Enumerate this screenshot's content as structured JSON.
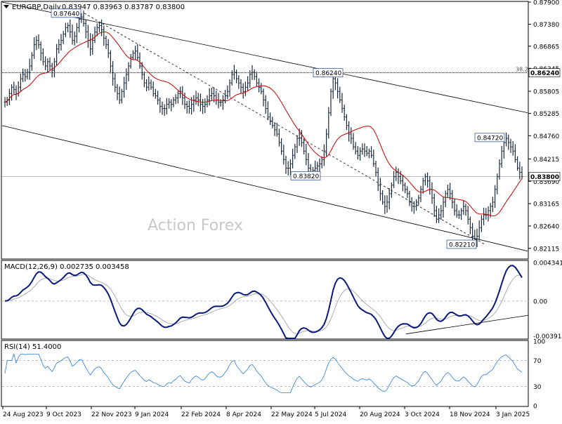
{
  "header": {
    "symbol_line": "EURGBP,Daily",
    "ohlc": "0.83947 0.83963 0.83787 0.83800"
  },
  "watermark": "Action Forex",
  "chart_data": [
    {
      "type": "bar",
      "subtype": "ohlc",
      "panel": "price",
      "ylim": [
        0.8188,
        0.879
      ],
      "y_ticks": [
        "0.87900",
        "0.87380",
        "0.86865",
        "0.86345",
        "0.85805",
        "0.85285",
        "0.84760",
        "0.84215",
        "0.83690",
        "0.83165",
        "0.82640",
        "0.82115"
      ],
      "x_ticks": [
        "24 Aug 2023",
        "9 Oct 2023",
        "22 Nov 2023",
        "9 Jan 2024",
        "22 Feb 2024",
        "8 Apr 2024",
        "22 May 2024",
        "5 Jul 2024",
        "20 Aug 2024",
        "3 Oct 2024",
        "18 Nov 2024",
        "3 Jan 2025"
      ],
      "closes": [
        0.8555,
        0.856,
        0.8575,
        0.859,
        0.8585,
        0.8575,
        0.859,
        0.861,
        0.862,
        0.8615,
        0.8625,
        0.864,
        0.8665,
        0.869,
        0.87,
        0.869,
        0.867,
        0.865,
        0.864,
        0.865,
        0.864,
        0.863,
        0.865,
        0.868,
        0.869,
        0.87,
        0.8715,
        0.873,
        0.8735,
        0.872,
        0.87,
        0.871,
        0.873,
        0.875,
        0.8755,
        0.874,
        0.872,
        0.87,
        0.868,
        0.87,
        0.872,
        0.873,
        0.8735,
        0.8725,
        0.8705,
        0.869,
        0.867,
        0.864,
        0.861,
        0.859,
        0.8575,
        0.856,
        0.858,
        0.86,
        0.862,
        0.864,
        0.866,
        0.867,
        0.8675,
        0.866,
        0.864,
        0.862,
        0.86,
        0.859,
        0.86,
        0.859,
        0.8575,
        0.857,
        0.856,
        0.8545,
        0.854,
        0.854,
        0.855,
        0.8555,
        0.855,
        0.856,
        0.8565,
        0.8575,
        0.858,
        0.8565,
        0.855,
        0.8545,
        0.854,
        0.855,
        0.856,
        0.8565,
        0.856,
        0.855,
        0.8545,
        0.855,
        0.856,
        0.857,
        0.8575,
        0.857,
        0.856,
        0.8555,
        0.8555,
        0.856,
        0.857,
        0.858,
        0.86,
        0.862,
        0.8625,
        0.861,
        0.86,
        0.859,
        0.858,
        0.859,
        0.86,
        0.862,
        0.8625,
        0.8615,
        0.86,
        0.859,
        0.858,
        0.856,
        0.854,
        0.852,
        0.851,
        0.85,
        0.849,
        0.848,
        0.846,
        0.844,
        0.842,
        0.84,
        0.84,
        0.841,
        0.843,
        0.845,
        0.847,
        0.848,
        0.846,
        0.844,
        0.842,
        0.84,
        0.839,
        0.8395,
        0.84,
        0.8405,
        0.841,
        0.842,
        0.844,
        0.848,
        0.853,
        0.858,
        0.861,
        0.86,
        0.858,
        0.856,
        0.854,
        0.852,
        0.85,
        0.848,
        0.847,
        0.845,
        0.844,
        0.843,
        0.844,
        0.8445,
        0.844,
        0.8435,
        0.844,
        0.843,
        0.841,
        0.839,
        0.836,
        0.834,
        0.832,
        0.831,
        0.832,
        0.834,
        0.836,
        0.838,
        0.839,
        0.838,
        0.837,
        0.836,
        0.835,
        0.834,
        0.832,
        0.831,
        0.831,
        0.832,
        0.833,
        0.835,
        0.837,
        0.838,
        0.837,
        0.835,
        0.833,
        0.83,
        0.828,
        0.829,
        0.83,
        0.832,
        0.834,
        0.835,
        0.834,
        0.832,
        0.83,
        0.829,
        0.829,
        0.83,
        0.831,
        0.83,
        0.828,
        0.826,
        0.824,
        0.823,
        0.824,
        0.826,
        0.828,
        0.829,
        0.829,
        0.83,
        0.831,
        0.832,
        0.835,
        0.838,
        0.841,
        0.844,
        0.846,
        0.847,
        0.846,
        0.845,
        0.844,
        0.842,
        0.84,
        0.839,
        0.838
      ],
      "ma": {
        "color": "#cc0000",
        "start": 0.856,
        "end": 0.8355
      },
      "horizontal_levels": [
        {
          "value": 0.8624,
          "label": "0.86240",
          "note": "38.2",
          "style": "dotted"
        },
        {
          "value": 0.838,
          "label": "0.83800",
          "style": "thin"
        }
      ],
      "price_labels": [
        {
          "text": "0.87640",
          "value": 0.8764
        },
        {
          "text": "0.86240",
          "value": 0.8624
        },
        {
          "text": "0.83820",
          "value": 0.8382
        },
        {
          "text": "0.84720",
          "value": 0.8472
        },
        {
          "text": "0.82210",
          "value": 0.8221
        }
      ],
      "channel_lines": [
        {
          "name": "upper",
          "from": 0.879,
          "to": 0.853
        },
        {
          "name": "lower",
          "from": 0.85,
          "to": 0.8205
        }
      ],
      "trend_line": {
        "from": 0.8764,
        "to": 0.8221,
        "style": "dashed"
      }
    },
    {
      "type": "line",
      "panel": "macd",
      "title": "MACD(12,26,9) 0.002735 0.003458",
      "ylim": [
        -0.0042,
        0.0045
      ],
      "y_ticks": [
        "0.004341",
        "0.00",
        "-0.003916"
      ],
      "zero_level": 0.0
    },
    {
      "type": "line",
      "panel": "rsi",
      "title": "RSI(14) 51.4000",
      "ylim": [
        0,
        100
      ],
      "y_ticks": [
        "100",
        "70",
        "30",
        "0"
      ],
      "levels": [
        70,
        30
      ]
    }
  ]
}
